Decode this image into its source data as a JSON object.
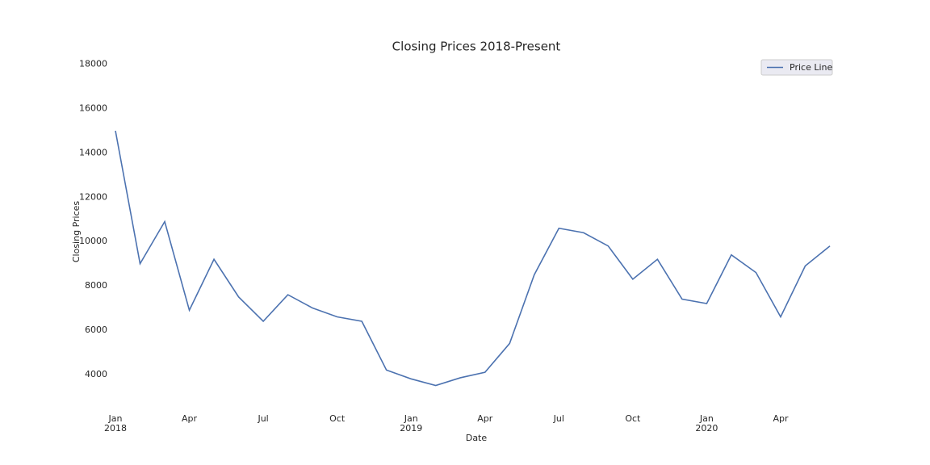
{
  "chart_data": {
    "type": "line",
    "title": "Closing Prices 2018-Present",
    "x_label": "Date",
    "y_label": "Closing Prices",
    "x": [
      "2018-01",
      "2018-02",
      "2018-03",
      "2018-04",
      "2018-05",
      "2018-06",
      "2018-07",
      "2018-08",
      "2018-09",
      "2018-10",
      "2018-11",
      "2018-12",
      "2019-01",
      "2019-02",
      "2019-03",
      "2019-04",
      "2019-05",
      "2019-06",
      "2019-07",
      "2019-08",
      "2019-09",
      "2019-10",
      "2019-11",
      "2019-12",
      "2020-01",
      "2020-02",
      "2020-03",
      "2020-04",
      "2020-05",
      "2020-06"
    ],
    "series": [
      {
        "name": "Price Line",
        "color": "#4c72b0",
        "values": [
          15000,
          9000,
          10900,
          6900,
          9200,
          7500,
          6400,
          7600,
          7000,
          6600,
          6400,
          4200,
          3800,
          3500,
          3850,
          4100,
          5400,
          8500,
          10600,
          10400,
          9800,
          8300,
          9200,
          7400,
          7200,
          9400,
          8600,
          6600,
          8900,
          9800
        ]
      }
    ],
    "xlim": [
      "2018-01",
      "2020-06"
    ],
    "xticks": [
      {
        "value": "2018-01",
        "label": "Jan\n2018"
      },
      {
        "value": "2018-04",
        "label": "Apr"
      },
      {
        "value": "2018-07",
        "label": "Jul"
      },
      {
        "value": "2018-10",
        "label": "Oct"
      },
      {
        "value": "2019-01",
        "label": "Jan\n2019"
      },
      {
        "value": "2019-04",
        "label": "Apr"
      },
      {
        "value": "2019-07",
        "label": "Jul"
      },
      {
        "value": "2019-10",
        "label": "Oct"
      },
      {
        "value": "2020-01",
        "label": "Jan\n2020"
      },
      {
        "value": "2020-04",
        "label": "Apr"
      }
    ],
    "ylim": [
      2500,
      18500
    ],
    "yticks": [
      4000,
      6000,
      8000,
      10000,
      12000,
      14000,
      16000,
      18000
    ],
    "grid": false,
    "legend": "upper right"
  }
}
